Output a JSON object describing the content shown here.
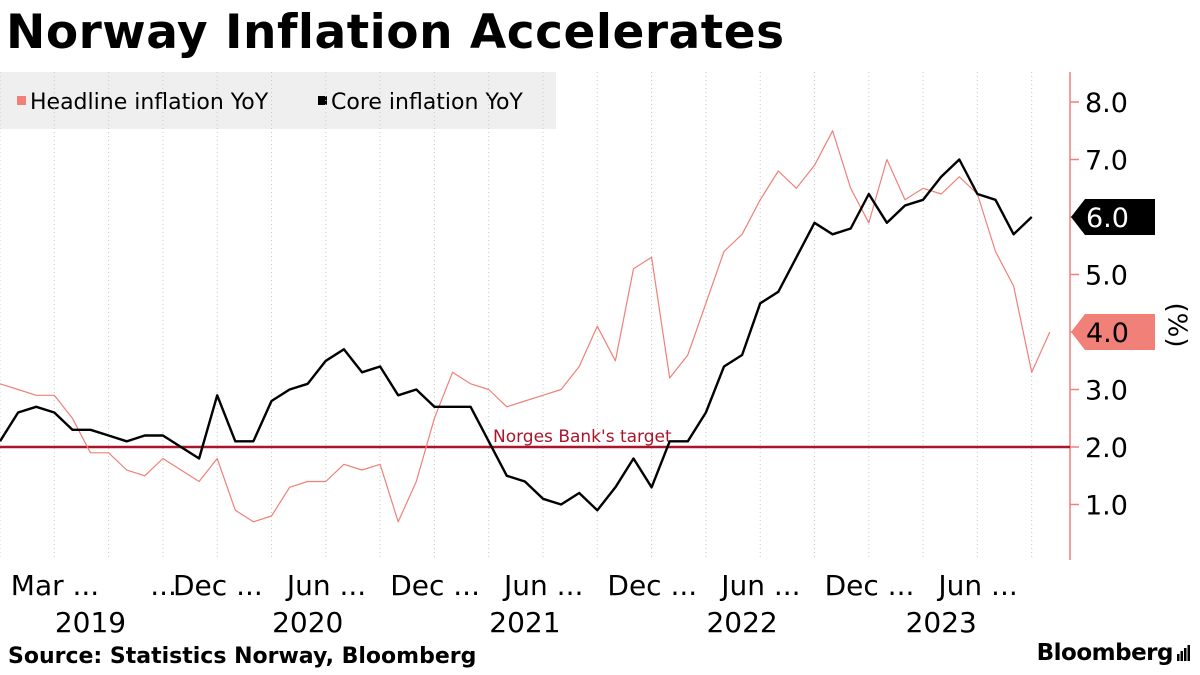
{
  "title": "Norway Inflation Accelerates",
  "source": "Source: Statistics Norway, Bloomberg",
  "brand": "Bloomberg",
  "chart_data": {
    "type": "line",
    "ylabel": "(%)",
    "ylim": [
      0,
      8.5
    ],
    "yticks": [
      1.0,
      2.0,
      3.0,
      4.0,
      5.0,
      6.0,
      7.0,
      8.0
    ],
    "x_start": "2019-03",
    "month_labels": [
      {
        "label": "Mar ...",
        "month": "2019-03"
      },
      {
        "label": "...",
        "month": "2019-09"
      },
      {
        "label": "Dec ...",
        "month": "2019-12"
      },
      {
        "label": "Jun ...",
        "month": "2020-06"
      },
      {
        "label": "Dec ...",
        "month": "2020-12"
      },
      {
        "label": "Jun ...",
        "month": "2021-06"
      },
      {
        "label": "Dec ...",
        "month": "2021-12"
      },
      {
        "label": "Jun ...",
        "month": "2022-06"
      },
      {
        "label": "Dec ...",
        "month": "2022-12"
      },
      {
        "label": "Jun ...",
        "month": "2023-06"
      }
    ],
    "year_labels": [
      {
        "label": "2019",
        "month": "2019-08"
      },
      {
        "label": "2020",
        "month": "2020-08"
      },
      {
        "label": "2021",
        "month": "2021-08"
      },
      {
        "label": "2022",
        "month": "2022-08"
      },
      {
        "label": "2023",
        "month": "2023-07"
      }
    ],
    "series": [
      {
        "name": "Headline inflation YoY",
        "color": "#f08078",
        "end_label": "4.0",
        "values": [
          3.1,
          3.0,
          2.9,
          2.9,
          2.5,
          1.9,
          1.9,
          1.6,
          1.5,
          1.8,
          1.6,
          1.4,
          1.8,
          0.9,
          0.7,
          0.8,
          1.3,
          1.4,
          1.4,
          1.7,
          1.6,
          1.7,
          0.7,
          1.4,
          2.5,
          3.3,
          3.1,
          3.0,
          2.7,
          2.8,
          2.9,
          3.0,
          3.4,
          4.1,
          3.5,
          5.1,
          5.3,
          3.2,
          3.6,
          4.5,
          5.4,
          5.7,
          6.3,
          6.8,
          6.5,
          6.9,
          7.5,
          6.5,
          5.9,
          7.0,
          6.3,
          6.5,
          6.4,
          6.7,
          6.4,
          5.4,
          4.8,
          3.3,
          4.0
        ]
      },
      {
        "name": "Core inflation YoY",
        "color": "#000000",
        "end_label": "6.0",
        "values": [
          2.1,
          2.6,
          2.7,
          2.6,
          2.3,
          2.3,
          2.2,
          2.1,
          2.2,
          2.2,
          2.0,
          1.8,
          2.9,
          2.1,
          2.1,
          2.8,
          3.0,
          3.1,
          3.5,
          3.7,
          3.3,
          3.4,
          2.9,
          3.0,
          2.7,
          2.7,
          2.7,
          2.1,
          1.5,
          1.4,
          1.1,
          1.0,
          1.2,
          0.9,
          1.3,
          1.8,
          1.3,
          2.1,
          2.1,
          2.6,
          3.4,
          3.6,
          4.5,
          4.7,
          5.3,
          5.9,
          5.7,
          5.8,
          6.4,
          5.9,
          6.2,
          6.3,
          6.7,
          7.0,
          6.4,
          6.3,
          5.7,
          6.0
        ]
      }
    ],
    "reference_line": {
      "label": "Norges Bank's target",
      "value": 2.0,
      "color": "#a8162b"
    }
  }
}
